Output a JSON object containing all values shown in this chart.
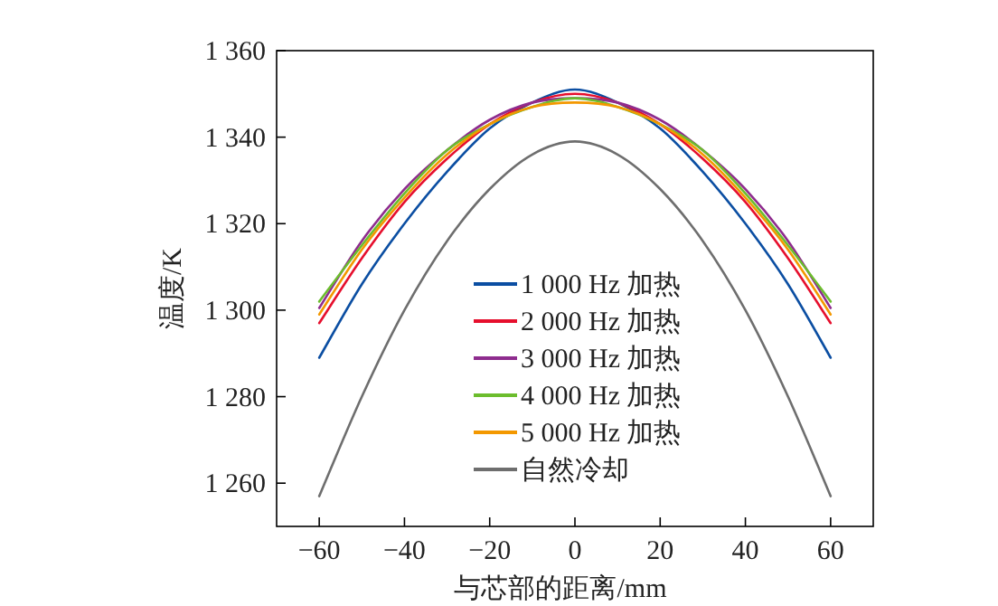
{
  "chart_data": {
    "type": "line",
    "xlabel": "与芯部的距离/mm",
    "ylabel": "温度/K",
    "x": [
      -60,
      -50,
      -40,
      -30,
      -20,
      -10,
      0,
      10,
      20,
      30,
      40,
      50,
      60
    ],
    "series": [
      {
        "name": "1 000 Hz 加热",
        "color": "#0b4ea2",
        "values": [
          1289,
          1306,
          1320,
          1332,
          1342,
          1348,
          1351,
          1348,
          1342,
          1332,
          1320,
          1306,
          1289
        ]
      },
      {
        "name": "2 000 Hz 加热",
        "color": "#e60f2d",
        "values": [
          1297,
          1312,
          1325,
          1335,
          1343,
          1348,
          1350,
          1348,
          1343,
          1335,
          1325,
          1312,
          1297
        ]
      },
      {
        "name": "3 000 Hz 加热",
        "color": "#8e2c8e",
        "values": [
          1300.5,
          1316,
          1328,
          1337,
          1344,
          1348,
          1349,
          1348,
          1344,
          1337,
          1328,
          1316,
          1300.5
        ]
      },
      {
        "name": "4 000 Hz 加热",
        "color": "#6cbd2d",
        "values": [
          1302,
          1315,
          1327,
          1337,
          1343,
          1347,
          1349,
          1347,
          1343,
          1337,
          1327,
          1315,
          1302
        ]
      },
      {
        "name": "5 000 Hz 加热",
        "color": "#f39800",
        "values": [
          1299,
          1314,
          1326,
          1336,
          1343,
          1347,
          1348,
          1347,
          1343,
          1336,
          1326,
          1314,
          1299
        ]
      },
      {
        "name": "自然冷却",
        "color": "#6e6e6e",
        "values": [
          1257,
          1280,
          1300,
          1316,
          1328,
          1336,
          1339,
          1336,
          1328,
          1316,
          1300,
          1280,
          1257
        ]
      }
    ],
    "xlim": [
      -70,
      70
    ],
    "ylim": [
      1250,
      1360
    ],
    "xticks": [
      -60,
      -40,
      -20,
      0,
      20,
      40,
      60
    ],
    "yticks": [
      {
        "value": 1260,
        "label": "1 260"
      },
      {
        "value": 1280,
        "label": "1 280"
      },
      {
        "value": 1300,
        "label": "1 300"
      },
      {
        "value": 1320,
        "label": "1 320"
      },
      {
        "value": 1340,
        "label": "1 340"
      },
      {
        "value": 1360,
        "label": "1 360"
      }
    ],
    "legend": "bottom",
    "grid": false,
    "marker": "none",
    "line_style": "solid"
  }
}
